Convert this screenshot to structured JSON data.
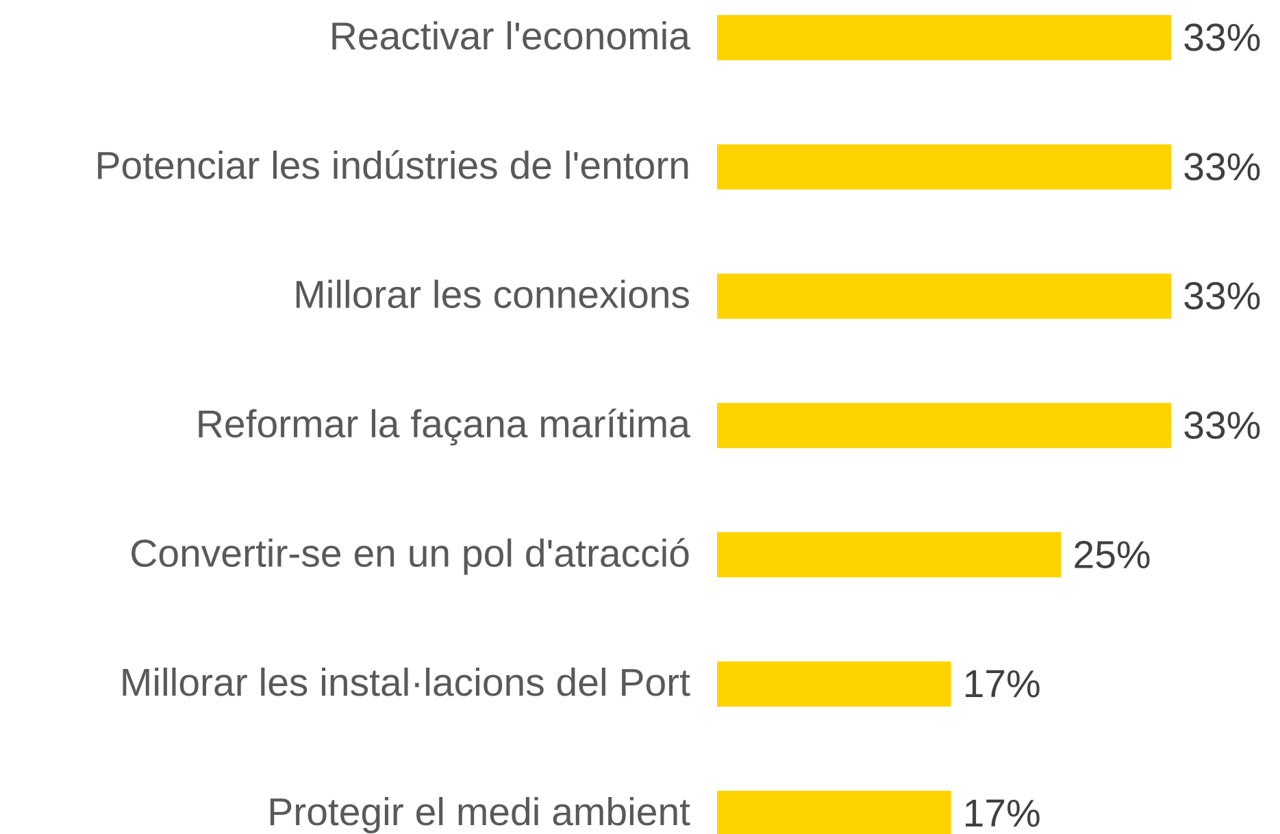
{
  "chart_data": {
    "type": "hbar",
    "categories": [
      "Reactivar l'economia",
      "Potenciar les indústries de l'entorn",
      "Millorar les connexions",
      "Reformar la façana marítima",
      "Convertir-se en un pol d'atracció",
      "Millorar les instal·lacions del Port",
      "Protegir el medi ambient"
    ],
    "values": [
      33,
      33,
      33,
      33,
      25,
      17,
      17
    ],
    "value_labels": [
      "33%",
      "33%",
      "33%",
      "33%",
      "25%",
      "17%",
      "17%"
    ],
    "color": "#FFD300"
  }
}
